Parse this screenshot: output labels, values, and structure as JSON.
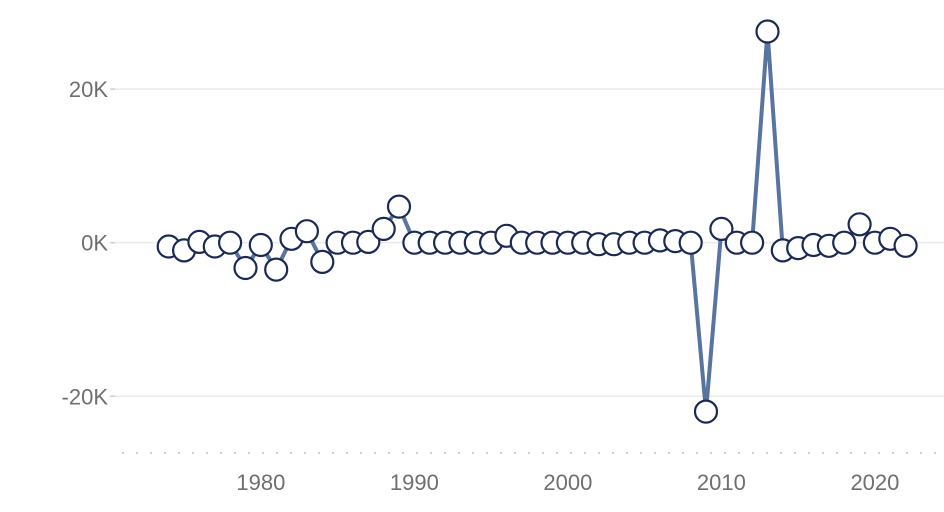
{
  "chart_data": {
    "type": "line",
    "title": "",
    "xlabel": "",
    "ylabel": "",
    "xlim": [
      1970.5,
      2024.5
    ],
    "ylim": [
      -27000,
      29000
    ],
    "x_ticks": [
      1980,
      1990,
      2000,
      2010,
      2020
    ],
    "y_ticks": [
      {
        "value": 20000,
        "label": "20K"
      },
      {
        "value": 0,
        "label": "0K"
      },
      {
        "value": -20000,
        "label": "-20K"
      }
    ],
    "grid": "horizontal",
    "line_color": "#59759f",
    "marker_stroke": "#1b2a55",
    "marker_fill": "#ffffff",
    "series": [
      {
        "x": [
          1974,
          1975,
          1976,
          1977,
          1978,
          1979,
          1980,
          1981,
          1982,
          1983,
          1984,
          1985,
          1986,
          1987,
          1988,
          1989,
          1990,
          1991,
          1992,
          1993,
          1994,
          1995,
          1996,
          1997,
          1998,
          1999,
          2000,
          2001,
          2002,
          2003,
          2004,
          2005,
          2006,
          2007,
          2008,
          2009,
          2010,
          2011,
          2012,
          2013,
          2014,
          2015,
          2016,
          2017,
          2018,
          2019,
          2020,
          2021,
          2022
        ],
        "values": [
          -500,
          -1000,
          100,
          -500,
          0,
          -3300,
          -300,
          -3500,
          500,
          1500,
          -2500,
          0,
          0,
          100,
          1800,
          4700,
          0,
          0,
          0,
          0,
          0,
          0,
          900,
          0,
          0,
          0,
          0,
          0,
          -200,
          -200,
          0,
          0,
          300,
          200,
          0,
          -22000,
          1800,
          0,
          0,
          27500,
          -1000,
          -700,
          -300,
          -400,
          0,
          2400,
          0,
          500,
          -400
        ]
      }
    ]
  }
}
